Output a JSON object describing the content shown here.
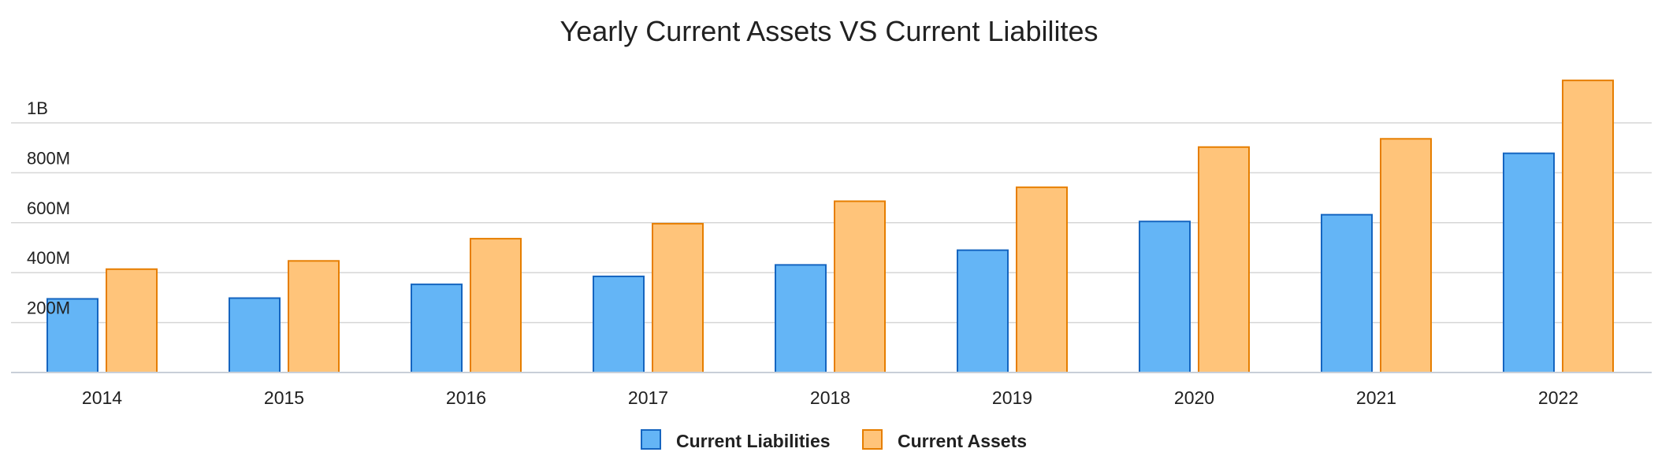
{
  "chart_data": {
    "type": "bar",
    "title": "Yearly Current Assets VS Current Liabilites",
    "xlabel": "",
    "ylabel": "",
    "categories": [
      "2014",
      "2015",
      "2016",
      "2017",
      "2018",
      "2019",
      "2020",
      "2021",
      "2022"
    ],
    "series": [
      {
        "name": "Current Liabilities",
        "color": "#64b5f6",
        "border_color": "#1565c0",
        "values": [
          295000000,
          298000000,
          353000000,
          385000000,
          431000000,
          490000000,
          605000000,
          632000000,
          878000000
        ]
      },
      {
        "name": "Current Assets",
        "color": "#ffc47a",
        "border_color": "#e67e00",
        "values": [
          414000000,
          447000000,
          536000000,
          596000000,
          686000000,
          742000000,
          903000000,
          936000000,
          1170000000
        ]
      }
    ],
    "ylim": [
      0,
      1200000000
    ],
    "yticks": [
      {
        "value": 200000000,
        "label": "200M"
      },
      {
        "value": 400000000,
        "label": "400M"
      },
      {
        "value": 600000000,
        "label": "600M"
      },
      {
        "value": 800000000,
        "label": "800M"
      },
      {
        "value": 1000000000,
        "label": "1B"
      }
    ],
    "grid": true,
    "legend_position": "bottom-center"
  }
}
